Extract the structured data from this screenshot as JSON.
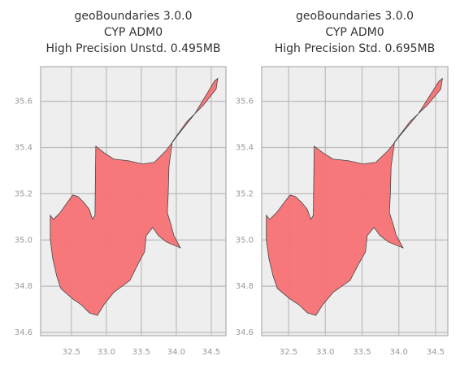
{
  "chart_data": [
    {
      "type": "polygon",
      "title": [
        "geoBoundaries 3.0.0",
        "CYP ADM0",
        "High Precision Unstd. 0.495MB"
      ],
      "color": "#f77174",
      "grid": true,
      "xlim": [
        32.06,
        34.71
      ],
      "ylim": [
        34.586,
        35.75
      ],
      "xticks": [
        32.5,
        {
          "value": 33,
          "label": "33.0"
        },
        33.5,
        {
          "value": 34,
          "label": "34.0"
        },
        34.5
      ],
      "yticks": [
        34.6,
        34.8,
        {
          "value": 35,
          "label": "35.0"
        },
        35.2,
        35.4,
        35.6
      ],
      "x": [
        32.198,
        32.244,
        32.337,
        32.453,
        32.523,
        32.593,
        32.686,
        32.756,
        32.802,
        32.837,
        32.849,
        32.965,
        33.105,
        33.314,
        33.512,
        33.686,
        33.86,
        34.035,
        34.267,
        34.442,
        34.547,
        34.593,
        34.57,
        34.384,
        34.151,
        33.942,
        33.895,
        33.884,
        33.872,
        33.919,
        33.965,
        34.058,
        33.86,
        33.744,
        33.663,
        33.57,
        33.547,
        33.453,
        33.337,
        33.105,
        32.965,
        32.872,
        32.756,
        32.64,
        32.523,
        32.349,
        32.291,
        32.233,
        32.198
      ],
      "y": [
        35.107,
        35.089,
        35.118,
        35.167,
        35.195,
        35.188,
        35.16,
        35.132,
        35.089,
        35.107,
        35.406,
        35.378,
        35.35,
        35.343,
        35.329,
        35.336,
        35.389,
        35.459,
        35.547,
        35.635,
        35.688,
        35.699,
        35.653,
        35.582,
        35.512,
        35.424,
        35.318,
        35.195,
        35.118,
        35.072,
        35.019,
        34.966,
        34.991,
        35.019,
        35.054,
        35.019,
        34.949,
        34.896,
        34.825,
        34.773,
        34.72,
        34.674,
        34.685,
        34.72,
        34.744,
        34.79,
        34.843,
        34.92,
        35.001
      ]
    },
    {
      "type": "polygon",
      "title": [
        "geoBoundaries 3.0.0",
        "CYP ADM0",
        "High Precision Std. 0.695MB"
      ],
      "color": "#f77174",
      "grid": true,
      "xlim": [
        32.135,
        34.666
      ],
      "ylim": [
        34.586,
        35.75
      ],
      "xticks": [
        32.5,
        {
          "value": 33,
          "label": "33.0"
        },
        33.5,
        {
          "value": 34,
          "label": "34.0"
        },
        34.5
      ],
      "yticks": [
        34.6,
        34.8,
        {
          "value": 35,
          "label": "35.0"
        },
        35.2,
        35.4,
        35.6
      ],
      "x": [
        32.198,
        32.244,
        32.337,
        32.453,
        32.523,
        32.593,
        32.686,
        32.756,
        32.802,
        32.837,
        32.849,
        32.965,
        33.105,
        33.314,
        33.512,
        33.686,
        33.86,
        34.035,
        34.267,
        34.442,
        34.547,
        34.593,
        34.57,
        34.384,
        34.151,
        33.942,
        33.895,
        33.884,
        33.872,
        33.919,
        33.965,
        34.058,
        33.86,
        33.744,
        33.663,
        33.57,
        33.547,
        33.453,
        33.337,
        33.105,
        32.965,
        32.872,
        32.756,
        32.64,
        32.523,
        32.349,
        32.291,
        32.233,
        32.198
      ],
      "y": [
        35.107,
        35.089,
        35.118,
        35.167,
        35.195,
        35.188,
        35.16,
        35.132,
        35.089,
        35.107,
        35.406,
        35.378,
        35.35,
        35.343,
        35.329,
        35.336,
        35.389,
        35.459,
        35.547,
        35.635,
        35.688,
        35.699,
        35.653,
        35.582,
        35.512,
        35.424,
        35.318,
        35.195,
        35.118,
        35.072,
        35.019,
        34.966,
        34.991,
        35.019,
        35.054,
        35.019,
        34.949,
        34.896,
        34.825,
        34.773,
        34.72,
        34.674,
        34.685,
        34.72,
        34.744,
        34.79,
        34.843,
        34.92,
        35.001
      ]
    }
  ]
}
